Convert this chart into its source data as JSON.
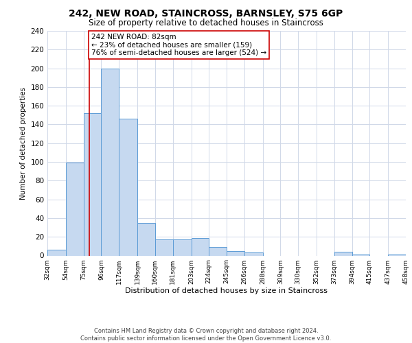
{
  "title": "242, NEW ROAD, STAINCROSS, BARNSLEY, S75 6GP",
  "subtitle": "Size of property relative to detached houses in Staincross",
  "xlabel": "Distribution of detached houses by size in Staincross",
  "ylabel": "Number of detached properties",
  "bar_left_edges": [
    32,
    54,
    75,
    96,
    117,
    139,
    160,
    181,
    203,
    224,
    245,
    266,
    288,
    309,
    330,
    352,
    373,
    394,
    415,
    437
  ],
  "bar_heights": [
    6,
    99,
    152,
    200,
    146,
    35,
    17,
    17,
    19,
    9,
    5,
    3,
    0,
    0,
    0,
    0,
    4,
    1,
    0,
    1
  ],
  "bar_widths": [
    22,
    21,
    21,
    21,
    22,
    21,
    21,
    22,
    21,
    21,
    21,
    22,
    21,
    21,
    22,
    21,
    21,
    21,
    22,
    21
  ],
  "bar_color": "#c6d9f0",
  "bar_edge_color": "#5b9bd5",
  "tick_labels": [
    "32sqm",
    "54sqm",
    "75sqm",
    "96sqm",
    "117sqm",
    "139sqm",
    "160sqm",
    "181sqm",
    "203sqm",
    "224sqm",
    "245sqm",
    "266sqm",
    "288sqm",
    "309sqm",
    "330sqm",
    "352sqm",
    "373sqm",
    "394sqm",
    "415sqm",
    "437sqm",
    "458sqm"
  ],
  "vline_x": 82,
  "vline_color": "#cc0000",
  "annotation_line1": "242 NEW ROAD: 82sqm",
  "annotation_line2": "← 23% of detached houses are smaller (159)",
  "annotation_line3": "76% of semi-detached houses are larger (524) →",
  "annotation_box_color": "#ffffff",
  "annotation_box_edgecolor": "#cc0000",
  "ylim": [
    0,
    240
  ],
  "yticks": [
    0,
    20,
    40,
    60,
    80,
    100,
    120,
    140,
    160,
    180,
    200,
    220,
    240
  ],
  "footer_text": "Contains HM Land Registry data © Crown copyright and database right 2024.\nContains public sector information licensed under the Open Government Licence v3.0.",
  "background_color": "#ffffff",
  "grid_color": "#d0d8e8"
}
